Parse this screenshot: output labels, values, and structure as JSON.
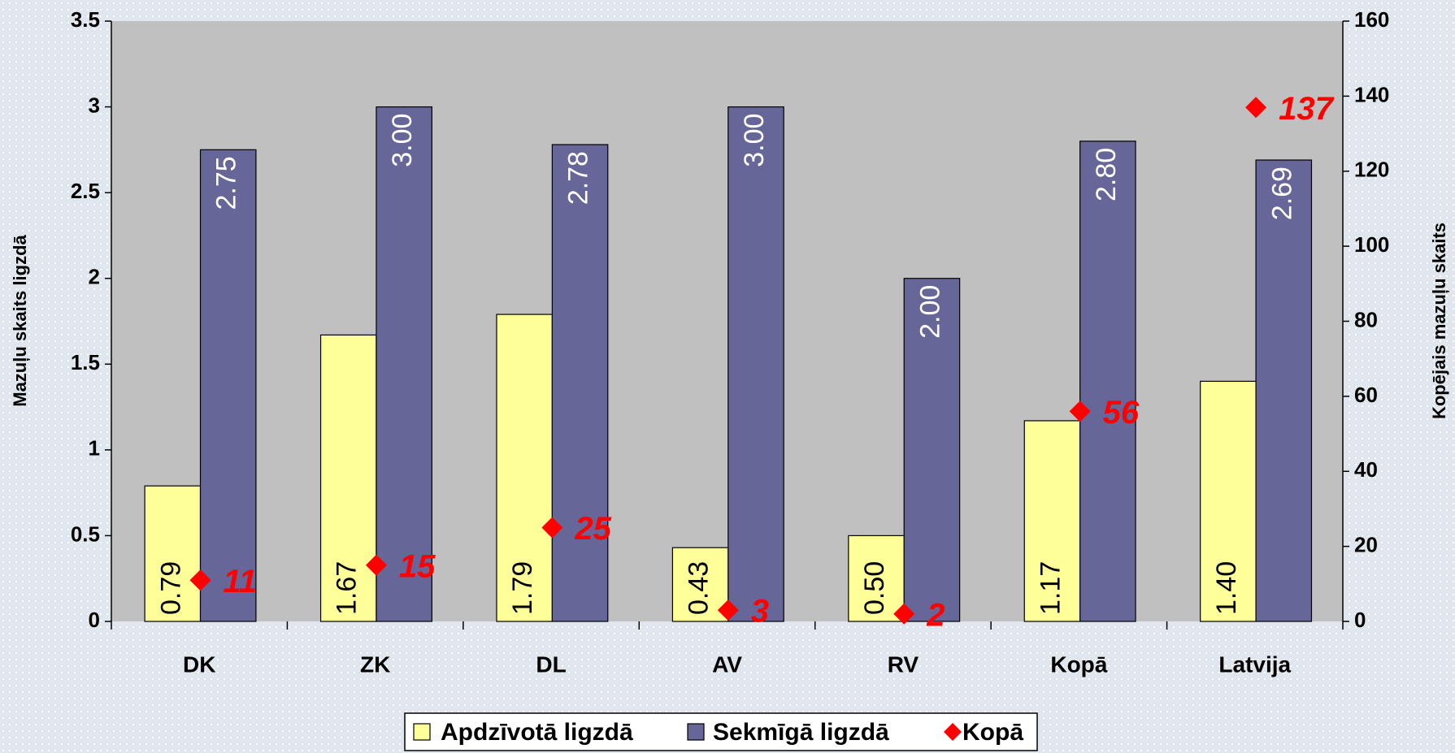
{
  "chart_data": {
    "type": "bar",
    "categories": [
      "DK",
      "ZK",
      "DL",
      "AV",
      "RV",
      "Kopā",
      "Latvija"
    ],
    "series": [
      {
        "name": "Apdzīvotā ligzdā",
        "color": "#ffff99",
        "values": [
          0.79,
          1.67,
          1.79,
          0.43,
          0.5,
          1.17,
          1.4
        ],
        "value_labels": [
          "0.79",
          "1.67",
          "1.79",
          "0.43",
          "0.50",
          "1.17",
          "1.40"
        ]
      },
      {
        "name": "Sekmīgā ligzdā",
        "color": "#666699",
        "values": [
          2.75,
          3,
          2.78,
          3,
          2,
          2.8,
          2.69
        ],
        "value_labels": [
          "2.75",
          "3.00",
          "2.78",
          "3.00",
          "2.00",
          "2.80",
          "2.69"
        ]
      },
      {
        "name": "Kopā",
        "type": "scatter",
        "axis": "y2",
        "color": "#ff0000",
        "values": [
          11,
          15,
          25,
          3,
          2,
          56,
          137
        ]
      }
    ],
    "ylabel": "Mazuļu skaits ligzdā",
    "y2label": "Kopējais mazuļu skaits",
    "ylim": [
      0,
      3.5
    ],
    "yticks": [
      0,
      0.5,
      1,
      1.5,
      2,
      2.5,
      3,
      3.5
    ],
    "y2lim": [
      0,
      160
    ],
    "y2ticks": [
      0,
      20,
      40,
      60,
      80,
      100,
      120,
      140,
      160
    ],
    "legend": "bottom"
  }
}
